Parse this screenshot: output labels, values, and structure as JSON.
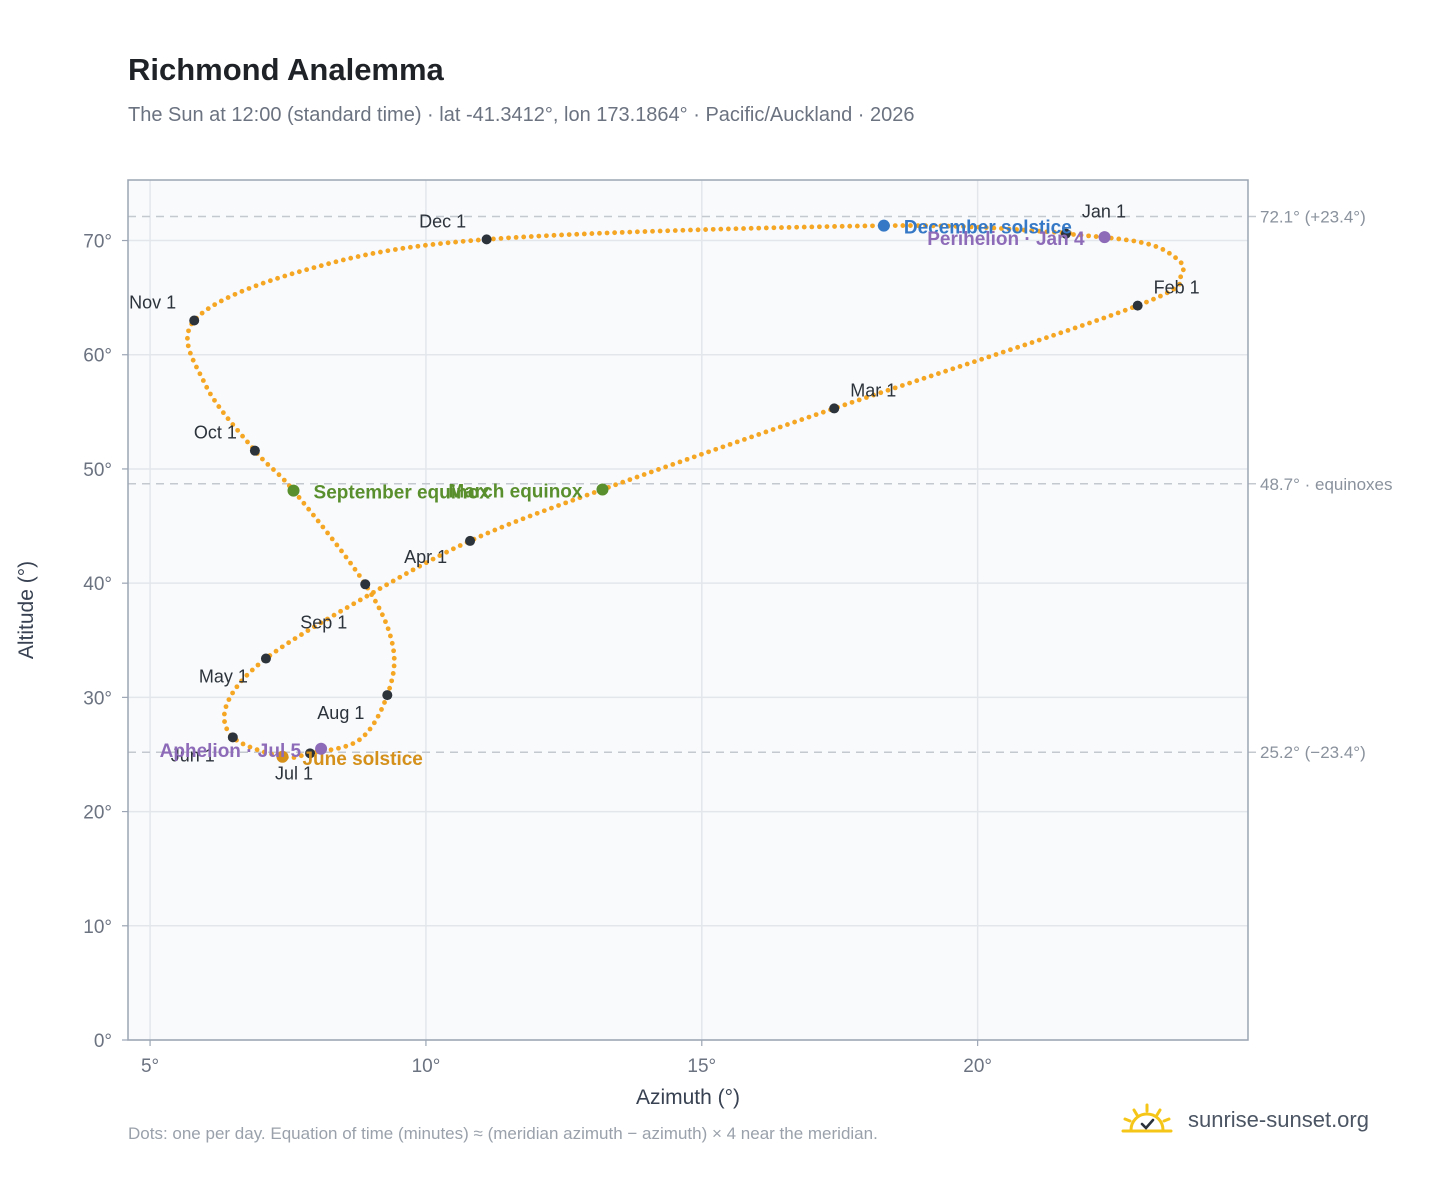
{
  "title": "Richmond Analemma",
  "subtitle": "The Sun at 12:00 (standard time) · lat -41.3412°, lon 173.1864° · Pacific/Auckland · 2026",
  "footnote": "Dots: one per day. Equation of time (minutes) ≈ (meridian azimuth − azimuth) × 4 near the meridian.",
  "brand": {
    "name": "sunrise-sunset.org",
    "icon": "sun-logo-icon"
  },
  "colors": {
    "path": "#f5a623",
    "month_marker": "#2d333b",
    "equinox": "#5a8f2e",
    "december_solstice": "#3478c6",
    "june_solstice": "#d4901a",
    "apsis": "#8e6bb8",
    "reference_line": "#c4c9d0",
    "plot_bg": "#f8fafc"
  },
  "chart_data": {
    "type": "scatter",
    "xlabel": "Azimuth (°)",
    "ylabel": "Altitude (°)",
    "xlim": [
      4.6,
      24.9
    ],
    "ylim": [
      0,
      75.3
    ],
    "xticks": [
      {
        "value": 5,
        "label": "5°"
      },
      {
        "value": 10,
        "label": "10°"
      },
      {
        "value": 15,
        "label": "15°"
      },
      {
        "value": 20,
        "label": "20°"
      }
    ],
    "yticks": [
      {
        "value": 0,
        "label": "0°"
      },
      {
        "value": 10,
        "label": "10°"
      },
      {
        "value": 20,
        "label": "20°"
      },
      {
        "value": 30,
        "label": "30°"
      },
      {
        "value": 40,
        "label": "40°"
      },
      {
        "value": 50,
        "label": "50°"
      },
      {
        "value": 60,
        "label": "60°"
      },
      {
        "value": 70,
        "label": "70°"
      }
    ],
    "grid": true,
    "reference_lines": [
      {
        "y": 72.1,
        "label": "72.1° (+23.4°)"
      },
      {
        "y": 48.7,
        "label": "48.7° · equinoxes"
      },
      {
        "y": 25.2,
        "label": "25.2° (−23.4°)"
      }
    ],
    "analemma_path": [
      {
        "date": "Jan 1",
        "x": 21.6,
        "y": 70.6
      },
      {
        "date": "Jan 15",
        "x": 22.9,
        "y": 69.9
      },
      {
        "date": "Jan 22",
        "x": 23.5,
        "y": 68.8
      },
      {
        "date": "Jan 26",
        "x": 23.7,
        "y": 67.1
      },
      {
        "date": "Feb 1",
        "x": 22.9,
        "y": 64.3
      },
      {
        "date": "Mar 1",
        "x": 17.4,
        "y": 55.3
      },
      {
        "date": "Mar 20",
        "x": 13.2,
        "y": 48.2
      },
      {
        "date": "Apr 1",
        "x": 10.8,
        "y": 43.7
      },
      {
        "date": "Apr 15",
        "x": 8.8,
        "y": 38.5
      },
      {
        "date": "May 1",
        "x": 7.1,
        "y": 33.4
      },
      {
        "date": "May 15",
        "x": 6.4,
        "y": 29.5
      },
      {
        "date": "Jun 1",
        "x": 6.5,
        "y": 26.5
      },
      {
        "date": "Jun 21",
        "x": 7.4,
        "y": 24.8
      },
      {
        "date": "Jul 1",
        "x": 7.9,
        "y": 25.1
      },
      {
        "date": "Jul 15",
        "x": 8.8,
        "y": 26.3
      },
      {
        "date": "Aug 1",
        "x": 9.3,
        "y": 30.2
      },
      {
        "date": "Aug 15",
        "x": 9.4,
        "y": 34.5
      },
      {
        "date": "Sep 1",
        "x": 8.9,
        "y": 39.9
      },
      {
        "date": "Sep 23",
        "x": 7.6,
        "y": 48.1
      },
      {
        "date": "Oct 1",
        "x": 6.9,
        "y": 51.6
      },
      {
        "date": "Oct 15",
        "x": 6.0,
        "y": 57.4
      },
      {
        "date": "Nov 1",
        "x": 5.8,
        "y": 63.0
      },
      {
        "date": "Nov 15",
        "x": 7.8,
        "y": 67.4
      },
      {
        "date": "Dec 1",
        "x": 11.1,
        "y": 70.1
      },
      {
        "date": "Dec 21",
        "x": 18.3,
        "y": 71.3
      },
      {
        "date": "Dec 31",
        "x": 21.5,
        "y": 70.7
      }
    ],
    "month_markers": [
      {
        "label": "Jan 1",
        "x": 21.6,
        "y": 70.6
      },
      {
        "label": "Feb 1",
        "x": 22.9,
        "y": 64.3
      },
      {
        "label": "Mar 1",
        "x": 17.4,
        "y": 55.3
      },
      {
        "label": "Apr 1",
        "x": 10.8,
        "y": 43.7
      },
      {
        "label": "May 1",
        "x": 7.1,
        "y": 33.4
      },
      {
        "label": "Jun 1",
        "x": 6.5,
        "y": 26.5
      },
      {
        "label": "Jul 1",
        "x": 7.9,
        "y": 25.1
      },
      {
        "label": "Aug 1",
        "x": 9.3,
        "y": 30.2
      },
      {
        "label": "Sep 1",
        "x": 8.9,
        "y": 39.9
      },
      {
        "label": "Oct 1",
        "x": 6.9,
        "y": 51.6
      },
      {
        "label": "Nov 1",
        "x": 5.8,
        "y": 63.0
      },
      {
        "label": "Dec 1",
        "x": 11.1,
        "y": 70.1
      }
    ],
    "events": [
      {
        "label": "December solstice",
        "x": 18.3,
        "y": 71.3,
        "color": "#3478c6"
      },
      {
        "label": "Perihelion · Jan 4",
        "x": 22.3,
        "y": 70.3,
        "color": "#8e6bb8"
      },
      {
        "label": "March equinox",
        "x": 13.2,
        "y": 48.2,
        "color": "#5a8f2e"
      },
      {
        "label": "September equinox",
        "x": 7.6,
        "y": 48.1,
        "color": "#5a8f2e"
      },
      {
        "label": "June solstice",
        "x": 7.4,
        "y": 24.8,
        "color": "#d4901a"
      },
      {
        "label": "Aphelion · Jul 5",
        "x": 8.1,
        "y": 25.5,
        "color": "#8e6bb8"
      }
    ]
  }
}
